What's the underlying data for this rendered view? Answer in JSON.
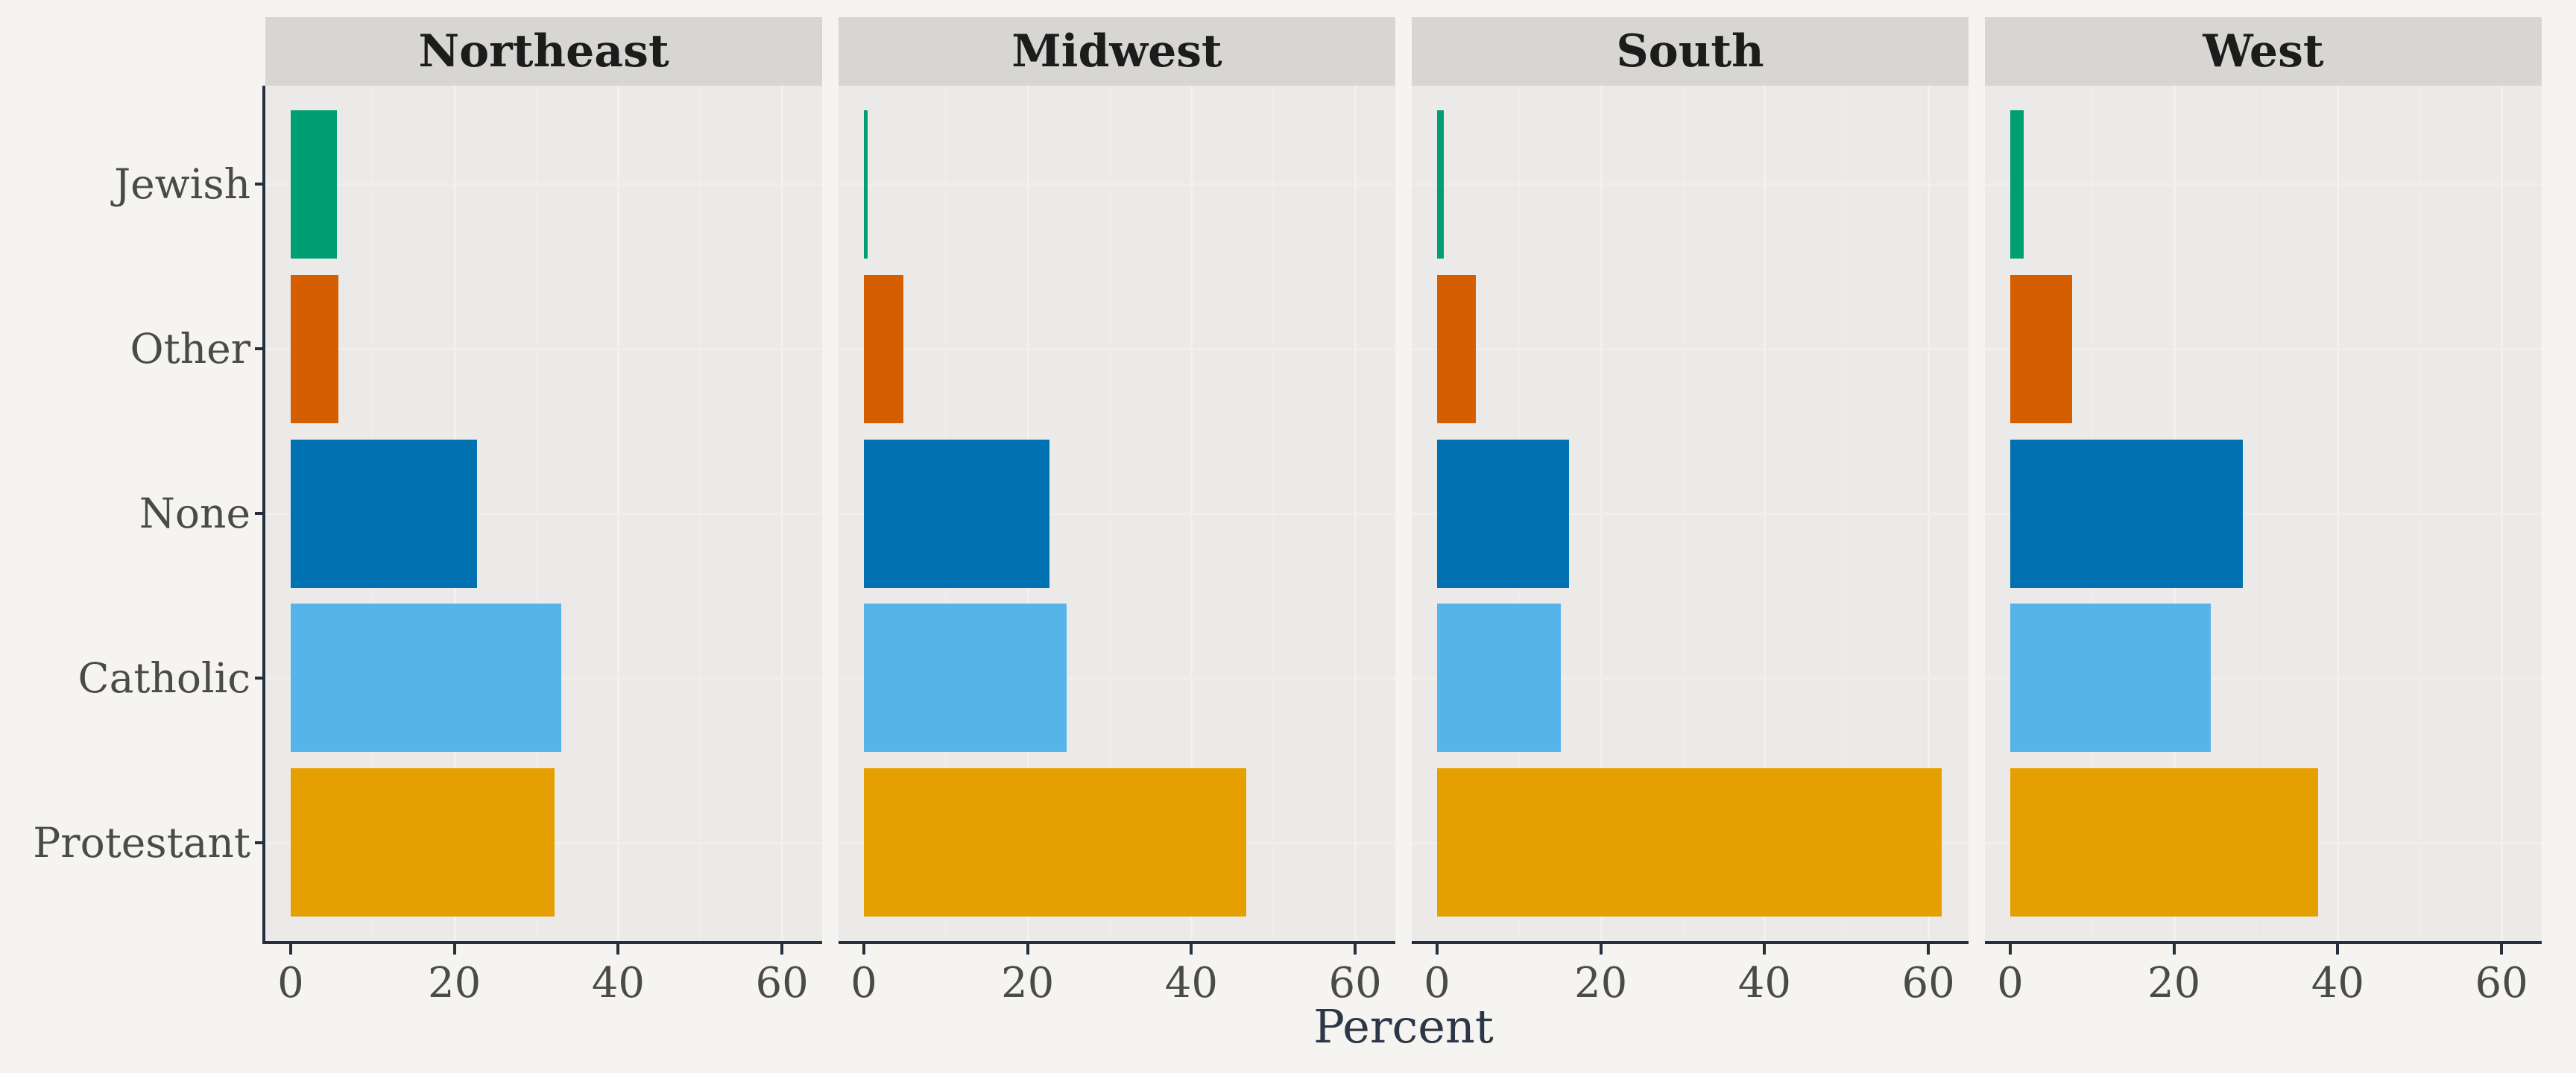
{
  "chart_data": {
    "type": "bar",
    "orientation": "horizontal",
    "title": "",
    "xlabel": "Percent",
    "ylabel": "",
    "x_ticks": [
      0,
      20,
      40,
      60
    ],
    "xlim": [
      -3.1,
      64.9
    ],
    "grid": "on",
    "legend": "none",
    "categories_top_to_bottom": [
      "Jewish",
      "Other",
      "None",
      "Catholic",
      "Protestant"
    ],
    "facets": [
      {
        "label": "Northeast",
        "values": [
          5.6,
          5.8,
          22.8,
          33.0,
          32.2
        ]
      },
      {
        "label": "Midwest",
        "values": [
          0.5,
          4.8,
          22.7,
          24.8,
          46.7
        ]
      },
      {
        "label": "South",
        "values": [
          0.8,
          4.7,
          16.1,
          15.1,
          61.6
        ]
      },
      {
        "label": "West",
        "values": [
          1.6,
          7.6,
          28.4,
          24.5,
          37.6
        ]
      }
    ],
    "colors": {
      "Jewish": "#009E73",
      "Other": "#D55E00",
      "None": "#0072B2",
      "Catholic": "#56B4E9",
      "Protestant": "#E69F00"
    },
    "style_colors": {
      "outer_background": "#F5F4F1",
      "panel_background": "#EBEAE8",
      "strip_background": "#D7D6D3",
      "axis_line": "#26303C",
      "tick_text": "#4a4a4a",
      "strip_text": "#1c1c1c",
      "axis_title_text": "#2c3647"
    }
  }
}
